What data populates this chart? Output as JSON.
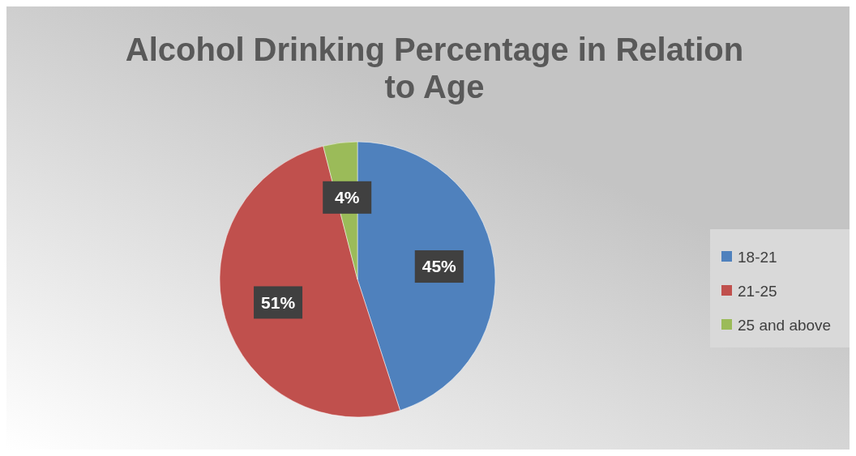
{
  "chart_data": {
    "type": "pie",
    "title": "Alcohol Drinking Percentage in Relation to Age",
    "categories": [
      "18-21",
      "21-25",
      "25 and above"
    ],
    "values": [
      45,
      51,
      4
    ],
    "colors": [
      "#4f81bd",
      "#c0504d",
      "#9bbb59"
    ],
    "value_labels": [
      "45%",
      "51%",
      "4%"
    ],
    "legend": "right"
  }
}
